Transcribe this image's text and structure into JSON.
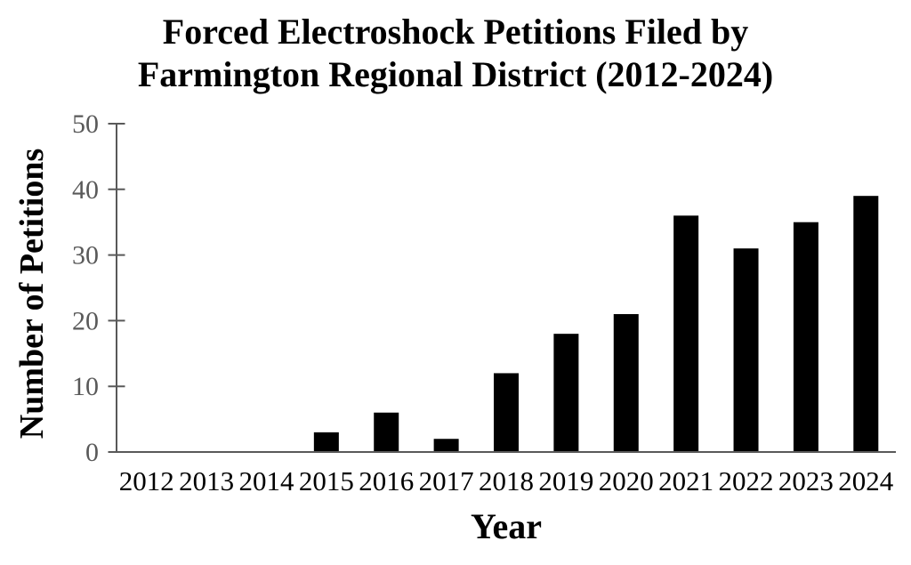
{
  "figure": {
    "title_lines": [
      "Forced Electroshock Petitions Filed by",
      "Farmington Regional District (2012-2024)"
    ],
    "xlabel": "Year",
    "ylabel": "Number of Petitions"
  },
  "chart_data": {
    "type": "bar",
    "title": "Forced Electroshock Petitions Filed by Farmington Regional District (2012-2024)",
    "xlabel": "Year",
    "ylabel": "Number of Petitions",
    "categories": [
      "2012",
      "2013",
      "2014",
      "2015",
      "2016",
      "2017",
      "2018",
      "2019",
      "2020",
      "2021",
      "2022",
      "2023",
      "2024"
    ],
    "values": [
      0,
      0,
      0,
      3,
      6,
      2,
      12,
      18,
      21,
      36,
      31,
      35,
      39
    ],
    "ylim": [
      0,
      50
    ],
    "yticks": [
      0,
      10,
      20,
      30,
      40,
      50
    ],
    "grid": false,
    "legend": false,
    "colors": {
      "bar": "#000000",
      "axis": "#595959",
      "ytick_label": "#595959",
      "xtick_label": "#000000",
      "title": "#000000"
    }
  }
}
